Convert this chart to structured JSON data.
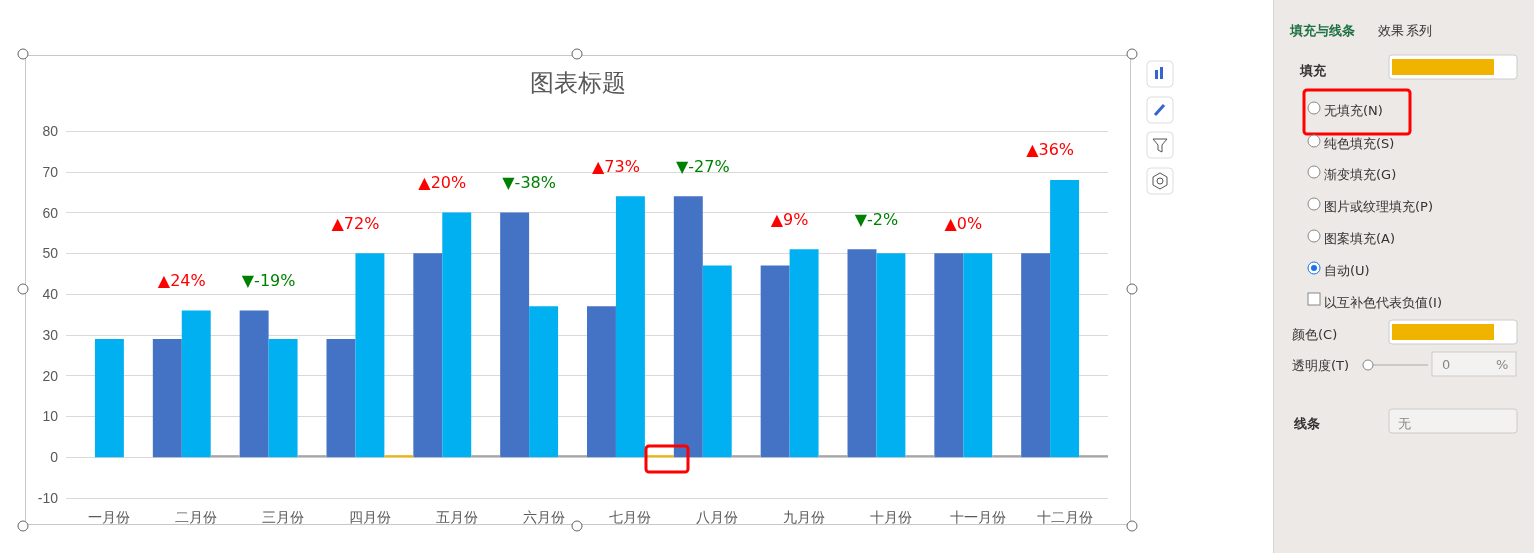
{
  "chart_data": [
    {
      "type": "bar",
      "title": "图表标题",
      "categories": [
        "一月份",
        "二月份",
        "三月份",
        "四月份",
        "五月份",
        "六月份",
        "七月份",
        "八月份",
        "九月份",
        "十月份",
        "十一月份",
        "十二月份"
      ],
      "series": [
        {
          "color": "#4472c4",
          "values": [
            null,
            29,
            36,
            29,
            50,
            60,
            37,
            64,
            47,
            51,
            50,
            50
          ]
        },
        {
          "color": "#00b0f0",
          "values": [
            29,
            36,
            29,
            50,
            60,
            37,
            64,
            47,
            51,
            50,
            50,
            68
          ]
        },
        {
          "colors": [
            "#a5a5a5",
            "#a5a5a5",
            "#a5a5a5",
            "#f0b400",
            "#a5a5a5",
            "#a5a5a5",
            "#f0b400",
            "#a5a5a5",
            "#a5a5a5",
            "#a5a5a5",
            "#a5a5a5",
            "#a5a5a5"
          ],
          "values": [
            null,
            0.5,
            0.5,
            0.5,
            0.5,
            0.5,
            0.5,
            0.5,
            0.5,
            0.5,
            0.5,
            0.5
          ]
        }
      ],
      "ylim": [
        -10,
        80
      ],
      "yticks": [
        -10,
        0,
        10,
        20,
        30,
        40,
        50,
        60,
        70,
        80
      ],
      "grid": "y",
      "annotations": [
        "▲24%",
        "▼-19%",
        "▲72%",
        "▲20%",
        "▼-38%",
        "▲73%",
        "▼-27%",
        "▲9%",
        "▼-2%",
        "▲0%",
        "▲36%"
      ]
    },
    {
      "type": "other",
      "annotations": [
        "填充与线条",
        "效果",
        "系列",
        "填充",
        "无填充(N)",
        "纯色填充(S)",
        "渐变填充(G)",
        "图片或纹理填充(P)",
        "图案填充(A)",
        "自动(U)",
        "以互补色代表负值(I)",
        "颜色(C)",
        "透明度(T)",
        "0",
        "%",
        "线条",
        "无"
      ]
    }
  ]
}
